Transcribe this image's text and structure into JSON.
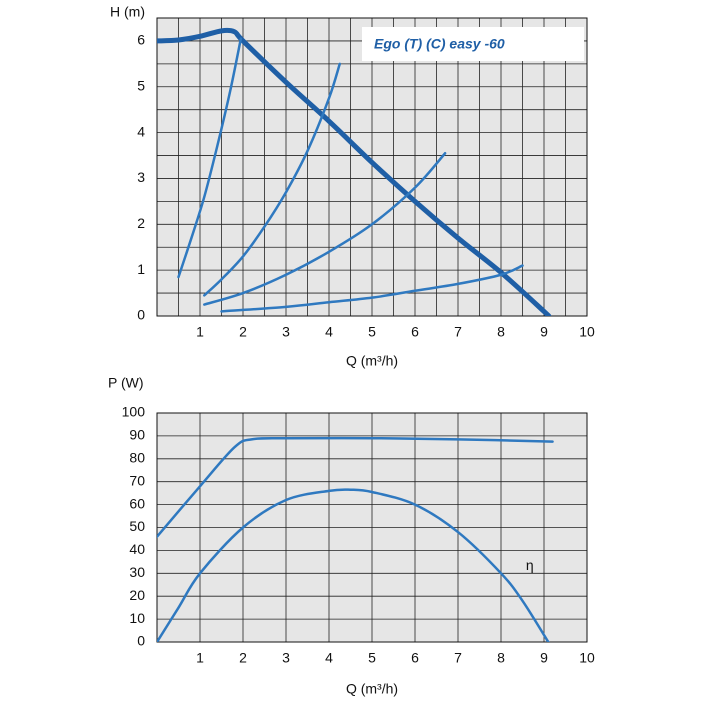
{
  "chart_data": [
    {
      "type": "line",
      "y_label": "H (m)",
      "x_label": "Q (m³/h)",
      "annotation": "Ego (T) (C) easy -60",
      "xlim": [
        0,
        10
      ],
      "xticks": [
        1,
        2,
        3,
        4,
        5,
        6,
        7,
        8,
        9,
        10
      ],
      "ylim": [
        0,
        6.5
      ],
      "yticks": [
        0,
        1,
        2,
        3,
        4,
        5,
        6
      ],
      "xminor": [
        0.5,
        1.5,
        2.5,
        3.5,
        4.5,
        5.5,
        6.5,
        7.5,
        8.5,
        9.5
      ],
      "yminor": [
        0.5,
        1.5,
        2.5,
        3.5,
        4.5,
        5.5
      ],
      "grid": true,
      "background": "#e6e6e6",
      "series": [
        {
          "color": "#1f5fa6",
          "width": 5,
          "x": [
            0,
            0.5,
            1,
            1.5,
            1.8,
            2,
            3,
            4,
            5,
            6,
            7,
            8,
            9,
            9.1
          ],
          "values": [
            6.0,
            6.02,
            6.1,
            6.22,
            6.2,
            6.0,
            5.1,
            4.25,
            3.35,
            2.5,
            1.7,
            0.95,
            0.1,
            0
          ]
        },
        {
          "color": "#2f79c0",
          "width": 2.5,
          "x": [
            0.5,
            0.8,
            1.1,
            1.4,
            1.7,
            1.95
          ],
          "values": [
            0.85,
            1.7,
            2.6,
            3.7,
            4.9,
            6.05
          ]
        },
        {
          "color": "#2f79c0",
          "width": 2.5,
          "x": [
            1.1,
            1.5,
            2,
            2.5,
            3,
            3.5,
            4,
            4.25
          ],
          "values": [
            0.45,
            0.8,
            1.3,
            1.95,
            2.7,
            3.6,
            4.75,
            5.5
          ]
        },
        {
          "color": "#2f79c0",
          "width": 2.5,
          "x": [
            1.1,
            2,
            3,
            4,
            5,
            6,
            6.7
          ],
          "values": [
            0.25,
            0.5,
            0.9,
            1.4,
            2.0,
            2.8,
            3.55
          ]
        },
        {
          "color": "#2f79c0",
          "width": 2.5,
          "x": [
            1.5,
            3,
            4,
            5,
            6,
            7,
            8,
            8.5
          ],
          "values": [
            0.1,
            0.2,
            0.3,
            0.4,
            0.55,
            0.7,
            0.9,
            1.1
          ]
        }
      ]
    },
    {
      "type": "line",
      "y_label": "P (W)",
      "x_label": "Q (m³/h)",
      "xlim": [
        0,
        10
      ],
      "xticks": [
        1,
        2,
        3,
        4,
        5,
        6,
        7,
        8,
        9,
        10
      ],
      "ylim": [
        0,
        100
      ],
      "yticks": [
        0,
        10,
        20,
        30,
        40,
        50,
        60,
        70,
        80,
        90,
        100
      ],
      "xminor": [],
      "yminor": [],
      "grid": true,
      "background": "#e6e6e6",
      "annotations": [
        {
          "text": "η"
        }
      ],
      "series": [
        {
          "color": "#2f79c0",
          "width": 2.5,
          "x": [
            0,
            1,
            1.8,
            2.2,
            3,
            5,
            7,
            9.2
          ],
          "values": [
            46,
            68,
            85,
            88.5,
            89,
            89,
            88.5,
            87.5
          ]
        },
        {
          "color": "#2f79c0",
          "width": 2.5,
          "x": [
            0,
            0.5,
            1,
            2,
            3,
            4,
            4.5,
            5,
            6,
            7,
            8,
            8.5,
            9.1
          ],
          "values": [
            0,
            15,
            30,
            50,
            62,
            66,
            66.5,
            65.5,
            60,
            48,
            30,
            18,
            0
          ]
        }
      ]
    }
  ]
}
